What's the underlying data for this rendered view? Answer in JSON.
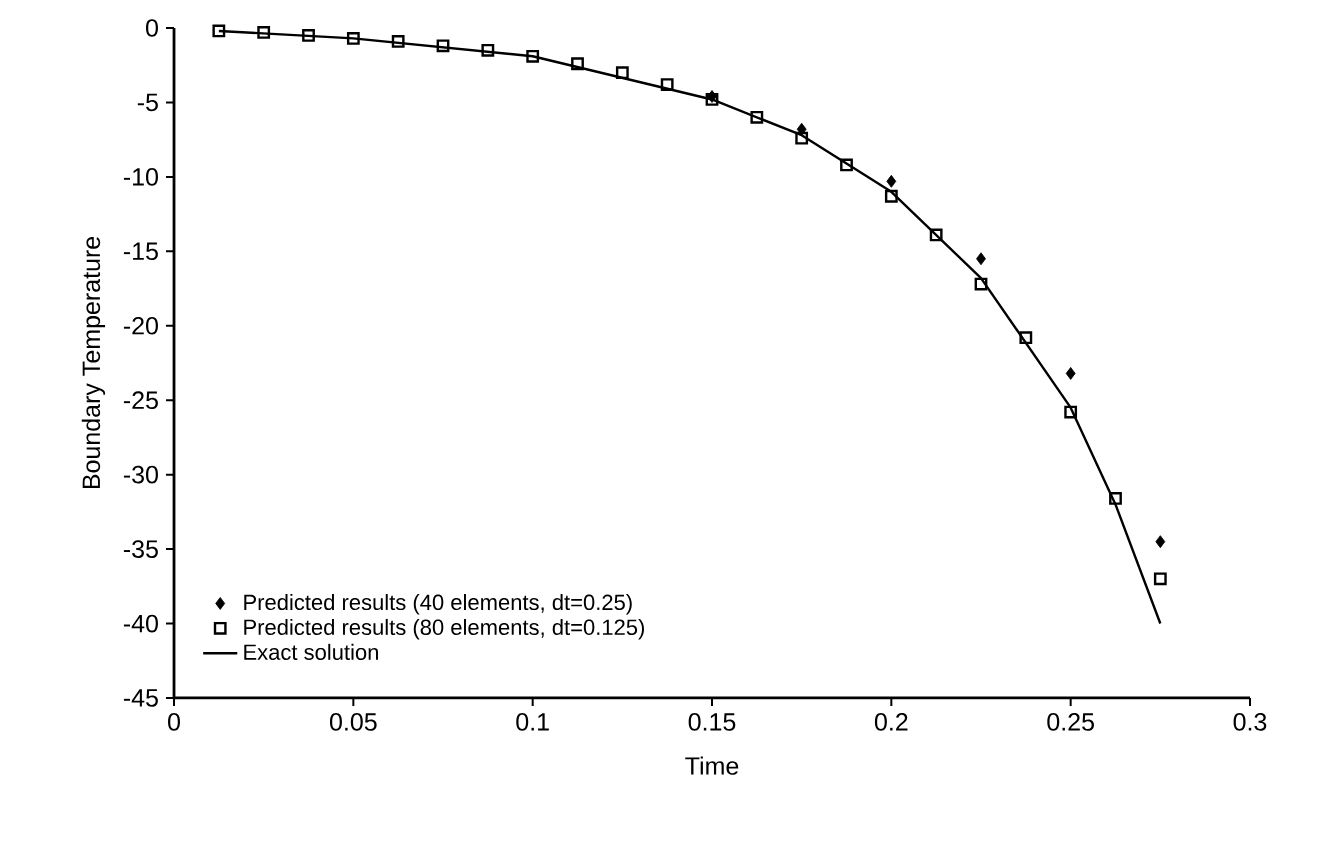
{
  "chart_data": {
    "type": "scatter",
    "xlabel": "Time",
    "ylabel": "Boundary Temperature",
    "xlim": [
      0,
      0.3
    ],
    "ylim": [
      -45,
      0
    ],
    "xticks": [
      0,
      0.05,
      0.1,
      0.15,
      0.2,
      0.25,
      0.3
    ],
    "yticks": [
      -45,
      -40,
      -35,
      -30,
      -25,
      -20,
      -15,
      -10,
      -5,
      0
    ],
    "legend": "bottom left",
    "grid": false,
    "series": [
      {
        "name": "Predicted results (40 elements, dt=0.25)",
        "color": "#000000",
        "marker": "diamond",
        "x": [
          0.15,
          0.175,
          0.2,
          0.225,
          0.25,
          0.275
        ],
        "values": [
          -4.6,
          -6.8,
          -10.3,
          -15.5,
          -23.2,
          -34.5
        ]
      },
      {
        "name": "Predicted results (80 elements, dt=0.125)",
        "color": "#000000",
        "marker": "square",
        "x": [
          0.0125,
          0.025,
          0.0375,
          0.05,
          0.0625,
          0.075,
          0.0875,
          0.1,
          0.1125,
          0.125,
          0.1375,
          0.15,
          0.1625,
          0.175,
          0.1875,
          0.2,
          0.2125,
          0.225,
          0.2375,
          0.25,
          0.2625,
          0.275
        ],
        "values": [
          -0.2,
          -0.3,
          -0.5,
          -0.7,
          -0.9,
          -1.2,
          -1.5,
          -1.9,
          -2.4,
          -3.0,
          -3.8,
          -4.8,
          -6.0,
          -7.4,
          -9.2,
          -11.3,
          -13.9,
          -17.2,
          -20.8,
          -25.8,
          -31.6,
          -37.0
        ]
      },
      {
        "name": "Exact solution",
        "type": "line",
        "color": "#000000",
        "marker": "none",
        "line_style": "solid",
        "x": [
          0.0125,
          0.05,
          0.1,
          0.15,
          0.175,
          0.2,
          0.225,
          0.25,
          0.2625,
          0.275
        ],
        "values": [
          -0.2,
          -0.7,
          -1.9,
          -4.8,
          -7.2,
          -11.0,
          -16.8,
          -25.5,
          -32.0,
          -40.0
        ]
      }
    ]
  }
}
